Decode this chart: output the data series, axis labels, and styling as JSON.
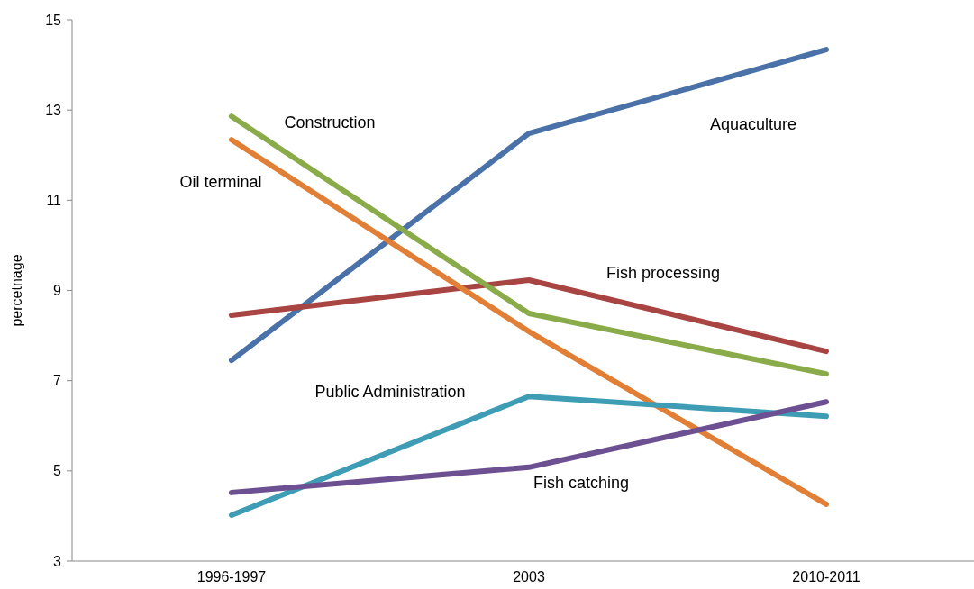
{
  "chart_data": {
    "type": "line",
    "ylabel": "percetnage",
    "categories": [
      "1996-1997",
      "2003",
      "2010-2011"
    ],
    "ylim": [
      3,
      15
    ],
    "yticks": [
      3,
      5,
      7,
      9,
      11,
      13,
      15
    ],
    "grid": false,
    "marker": "none",
    "line_style": "solid",
    "series": [
      {
        "name": "Aquaculture",
        "color": "#4a72a8",
        "values": [
          7.45,
          12.48,
          14.34
        ]
      },
      {
        "name": "Fish processing",
        "color": "#a84441",
        "values": [
          8.45,
          9.23,
          7.65
        ]
      },
      {
        "name": "Construction",
        "color": "#8aab4a",
        "values": [
          12.86,
          8.49,
          7.15
        ]
      },
      {
        "name": "Oil terminal",
        "color": "#e07f35",
        "values": [
          12.34,
          8.09,
          4.26
        ]
      },
      {
        "name": "Public Administration",
        "color": "#3e9db5",
        "values": [
          4.02,
          6.65,
          6.21
        ]
      },
      {
        "name": "Fish catching",
        "color": "#6d5091",
        "values": [
          4.52,
          5.08,
          6.53
        ]
      }
    ]
  }
}
